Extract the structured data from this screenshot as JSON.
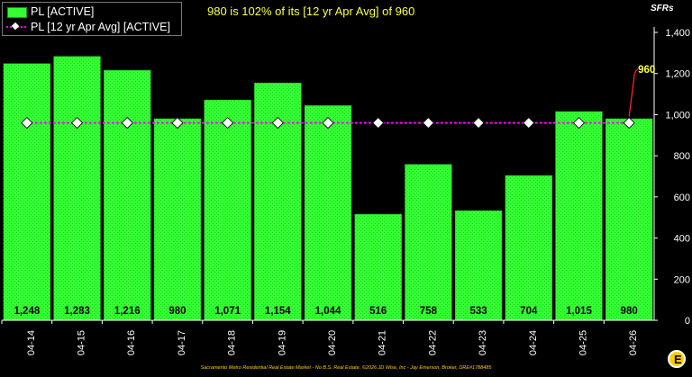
{
  "chart_data": {
    "type": "bar",
    "headline": "980 is 102% of its [12 yr Apr Avg] of 960",
    "y_unit_label": "SFRs",
    "categories": [
      "04-14",
      "04-15",
      "04-16",
      "04-17",
      "04-18",
      "04-19",
      "04-20",
      "04-21",
      "04-22",
      "04-23",
      "04-24",
      "04-25",
      "04-26"
    ],
    "value_labels": [
      "1,248",
      "1,283",
      "1,216",
      "980",
      "1,071",
      "1,154",
      "1,044",
      "516",
      "758",
      "533",
      "704",
      "1,015",
      "980"
    ],
    "series": [
      {
        "name": "PL [ACTIVE]",
        "values": [
          1248,
          1283,
          1216,
          980,
          1071,
          1154,
          1044,
          516,
          758,
          533,
          704,
          1015,
          980
        ],
        "color": "#33ff33"
      },
      {
        "name": "PL [12 yr Apr Avg] [ACTIVE]",
        "values": [
          960,
          960,
          960,
          960,
          960,
          960,
          960,
          960,
          960,
          960,
          960,
          960,
          960
        ],
        "color": "#ff00ff",
        "marker": "white-diamond"
      }
    ],
    "ylim": [
      0,
      1400
    ],
    "yticks": [
      0,
      200,
      400,
      600,
      800,
      1000,
      1200,
      1400
    ],
    "ytick_labels": [
      "0",
      "200",
      "400",
      "600",
      "800",
      "1,000",
      "1,200",
      "1,400"
    ],
    "y_axis_side": "right",
    "grid": false,
    "legend_position": "top-left",
    "annotation": {
      "label": "960",
      "category": "04-26",
      "value": 960,
      "color": "#ffff44",
      "line_color": "#ff2222"
    }
  },
  "footer_text": "Sacramento Metro Residential Real Estate Market - No B.S. Real Estate, ©2026 JD Wise, Inc - Jay Emerson, Broker, DRE#1788485",
  "logo_letter": "E"
}
